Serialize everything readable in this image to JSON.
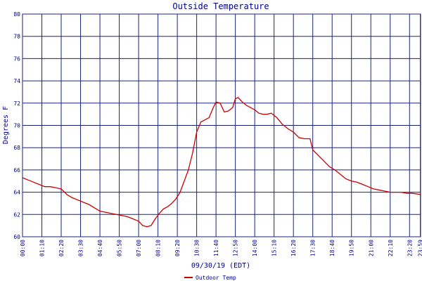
{
  "chart_data": {
    "type": "line",
    "title": "Outside Temperature",
    "xlabel": "09/30/19 (EDT)",
    "ylabel": "Degrees F",
    "ylim": [
      60,
      80
    ],
    "yticks": [
      60,
      62,
      64,
      66,
      68,
      70,
      72,
      74,
      76,
      78,
      80
    ],
    "xticks": [
      "00:00",
      "01:10",
      "02:20",
      "03:30",
      "04:40",
      "05:50",
      "07:00",
      "08:10",
      "09:20",
      "10:30",
      "11:40",
      "12:50",
      "14:00",
      "15:10",
      "16:20",
      "17:30",
      "18:40",
      "19:50",
      "21:00",
      "22:10",
      "23:20"
    ],
    "xticks_extra_overlap": [
      "23:59"
    ],
    "grid": true,
    "legend_position": "bottom-left",
    "colors": {
      "series": "#cc0000",
      "grid": "#1a237e",
      "text": "#00008b"
    },
    "series": [
      {
        "name": "Outdoor Temp",
        "points": [
          [
            "00:00",
            65.3
          ],
          [
            "00:20",
            65.1
          ],
          [
            "00:40",
            64.9
          ],
          [
            "01:00",
            64.7
          ],
          [
            "01:20",
            64.5
          ],
          [
            "01:40",
            64.5
          ],
          [
            "02:00",
            64.4
          ],
          [
            "02:20",
            64.3
          ],
          [
            "02:40",
            63.8
          ],
          [
            "03:00",
            63.5
          ],
          [
            "03:20",
            63.3
          ],
          [
            "03:40",
            63.1
          ],
          [
            "04:00",
            62.9
          ],
          [
            "04:20",
            62.6
          ],
          [
            "04:40",
            62.3
          ],
          [
            "05:00",
            62.2
          ],
          [
            "05:20",
            62.1
          ],
          [
            "05:40",
            62.0
          ],
          [
            "06:00",
            61.9
          ],
          [
            "06:20",
            61.8
          ],
          [
            "06:40",
            61.6
          ],
          [
            "07:00",
            61.4
          ],
          [
            "07:15",
            61.0
          ],
          [
            "07:30",
            60.9
          ],
          [
            "07:45",
            61.0
          ],
          [
            "08:00",
            61.6
          ],
          [
            "08:15",
            62.1
          ],
          [
            "08:30",
            62.5
          ],
          [
            "08:45",
            62.7
          ],
          [
            "09:00",
            63.0
          ],
          [
            "09:15",
            63.4
          ],
          [
            "09:30",
            64.0
          ],
          [
            "09:45",
            65.0
          ],
          [
            "10:00",
            66.0
          ],
          [
            "10:15",
            67.5
          ],
          [
            "10:30",
            69.4
          ],
          [
            "10:45",
            70.3
          ],
          [
            "11:00",
            70.5
          ],
          [
            "11:15",
            70.7
          ],
          [
            "11:30",
            71.6
          ],
          [
            "11:40",
            72.1
          ],
          [
            "11:55",
            72.0
          ],
          [
            "12:10",
            71.2
          ],
          [
            "12:25",
            71.3
          ],
          [
            "12:40",
            71.6
          ],
          [
            "12:50",
            72.4
          ],
          [
            "13:00",
            72.5
          ],
          [
            "13:15",
            72.1
          ],
          [
            "13:30",
            71.8
          ],
          [
            "13:45",
            71.6
          ],
          [
            "14:00",
            71.4
          ],
          [
            "14:15",
            71.1
          ],
          [
            "14:30",
            71.0
          ],
          [
            "14:45",
            71.0
          ],
          [
            "15:00",
            71.1
          ],
          [
            "15:20",
            70.7
          ],
          [
            "15:40",
            70.1
          ],
          [
            "16:00",
            69.7
          ],
          [
            "16:20",
            69.4
          ],
          [
            "16:40",
            68.9
          ],
          [
            "17:00",
            68.8
          ],
          [
            "17:20",
            68.8
          ],
          [
            "17:30",
            67.8
          ],
          [
            "17:50",
            67.3
          ],
          [
            "18:10",
            66.8
          ],
          [
            "18:30",
            66.3
          ],
          [
            "18:50",
            66.0
          ],
          [
            "19:10",
            65.6
          ],
          [
            "19:30",
            65.2
          ],
          [
            "19:50",
            65.0
          ],
          [
            "20:10",
            64.9
          ],
          [
            "20:30",
            64.7
          ],
          [
            "20:50",
            64.5
          ],
          [
            "21:10",
            64.3
          ],
          [
            "21:30",
            64.2
          ],
          [
            "21:50",
            64.1
          ],
          [
            "22:10",
            64.0
          ],
          [
            "22:30",
            64.0
          ],
          [
            "22:50",
            64.0
          ],
          [
            "23:10",
            63.9
          ],
          [
            "23:30",
            63.9
          ],
          [
            "23:59",
            63.8
          ]
        ]
      }
    ]
  }
}
